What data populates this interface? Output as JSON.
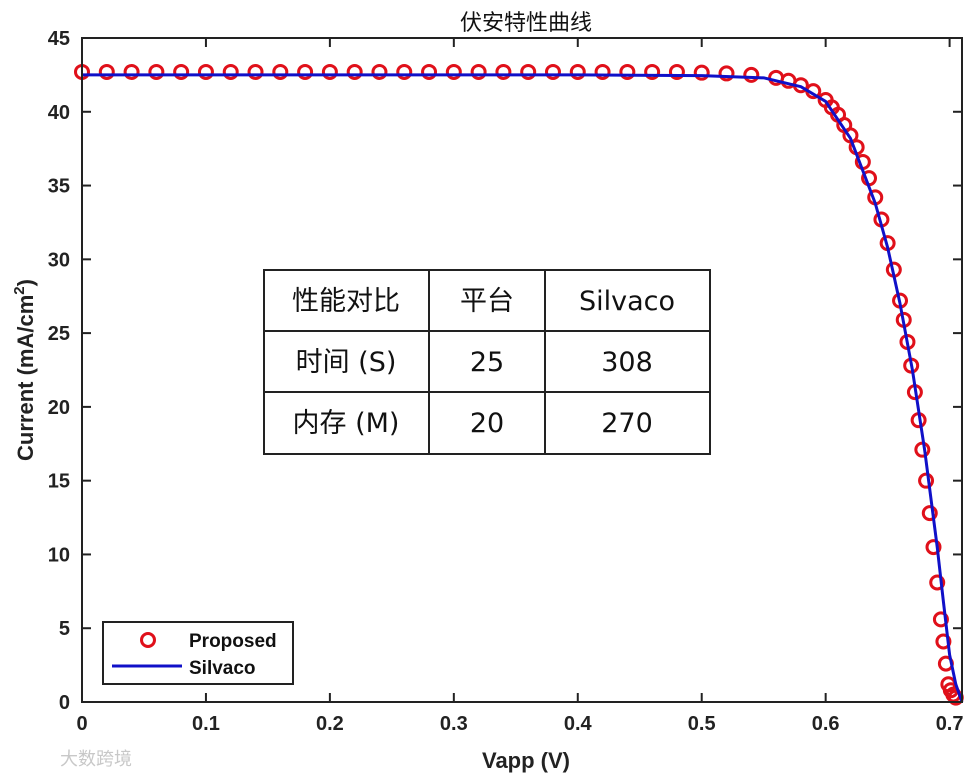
{
  "chart_data": {
    "type": "scatter",
    "title": "伏安特性曲线",
    "xlabel": "Vapp (V)",
    "ylabel": "Current (mA/cm2)",
    "ylabel_main": "Current (mA/cm",
    "ylabel_sup": "2",
    "ylabel_tail": ")",
    "xlim": [
      0,
      0.71
    ],
    "ylim": [
      0,
      45
    ],
    "xticks": [
      "0",
      "0.1",
      "0.2",
      "0.3",
      "0.4",
      "0.5",
      "0.6",
      "0.7"
    ],
    "yticks": [
      "0",
      "5",
      "10",
      "15",
      "20",
      "25",
      "30",
      "35",
      "40",
      "45"
    ],
    "grid": false,
    "legend_position": "bottom-left",
    "series": [
      {
        "name": "Proposed",
        "style": "markers",
        "color": "#e0101a",
        "x": [
          0,
          0.02,
          0.04,
          0.06,
          0.08,
          0.1,
          0.12,
          0.14,
          0.16,
          0.18,
          0.2,
          0.22,
          0.24,
          0.26,
          0.28,
          0.3,
          0.32,
          0.34,
          0.36,
          0.38,
          0.4,
          0.42,
          0.44,
          0.46,
          0.48,
          0.5,
          0.52,
          0.54,
          0.56,
          0.57,
          0.58,
          0.59,
          0.6,
          0.605,
          0.61,
          0.615,
          0.62,
          0.625,
          0.63,
          0.635,
          0.64,
          0.645,
          0.65,
          0.655,
          0.66,
          0.663,
          0.666,
          0.669,
          0.672,
          0.675,
          0.678,
          0.681,
          0.684,
          0.687,
          0.69,
          0.693,
          0.695,
          0.697,
          0.699,
          0.701,
          0.703,
          0.705
        ],
        "y": [
          42.7,
          42.7,
          42.7,
          42.7,
          42.7,
          42.7,
          42.7,
          42.7,
          42.7,
          42.7,
          42.7,
          42.7,
          42.7,
          42.7,
          42.7,
          42.7,
          42.7,
          42.7,
          42.7,
          42.7,
          42.7,
          42.7,
          42.7,
          42.7,
          42.7,
          42.65,
          42.6,
          42.5,
          42.3,
          42.1,
          41.8,
          41.4,
          40.8,
          40.3,
          39.8,
          39.1,
          38.4,
          37.6,
          36.6,
          35.5,
          34.2,
          32.7,
          31.1,
          29.3,
          27.2,
          25.9,
          24.4,
          22.8,
          21.0,
          19.1,
          17.1,
          15.0,
          12.8,
          10.5,
          8.1,
          5.6,
          4.1,
          2.6,
          1.2,
          0.8,
          0.5,
          0.3
        ]
      },
      {
        "name": "Silvaco",
        "style": "line",
        "color": "#1010c8",
        "x": [
          0,
          0.1,
          0.2,
          0.3,
          0.4,
          0.5,
          0.55,
          0.58,
          0.6,
          0.62,
          0.64,
          0.65,
          0.66,
          0.67,
          0.68,
          0.69,
          0.695,
          0.7,
          0.705,
          0.71
        ],
        "y": [
          42.5,
          42.5,
          42.5,
          42.5,
          42.5,
          42.45,
          42.3,
          41.7,
          40.7,
          38.2,
          33.8,
          30.8,
          27.0,
          22.5,
          17.0,
          10.5,
          6.8,
          3.2,
          1.2,
          0.0
        ]
      }
    ],
    "table": {
      "rows": [
        [
          "性能对比",
          "平台",
          "Silvaco"
        ],
        [
          "时间 (S)",
          "25",
          "308"
        ],
        [
          "内存 (M)",
          "20",
          "270"
        ]
      ]
    }
  },
  "watermark": "大数跨境"
}
